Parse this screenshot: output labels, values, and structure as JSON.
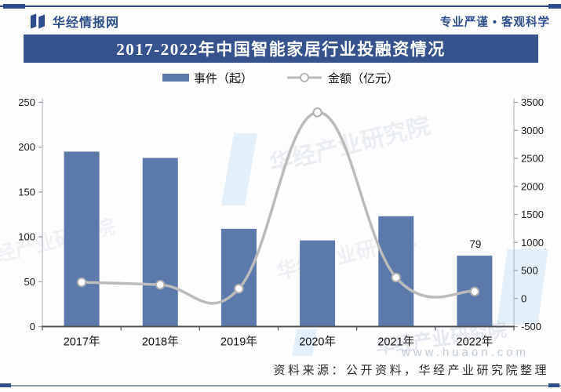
{
  "header": {
    "brand": "华经情报网",
    "slogan": "专业严谨 • 客观科学",
    "title": "2017-2022年中国智能家居行业投融资情况"
  },
  "legend": {
    "bar_label": "事件（起）",
    "line_label": "金额（亿元）"
  },
  "chart_data": {
    "type": "combo",
    "categories": [
      "2017年",
      "2018年",
      "2019年",
      "2020年",
      "2021年",
      "2022年"
    ],
    "series": [
      {
        "name": "事件（起）",
        "type": "bar",
        "axis": "left",
        "color": "#5b79ab",
        "values": [
          195,
          188,
          109,
          96,
          123,
          79
        ]
      },
      {
        "name": "金额（亿元）",
        "type": "line",
        "axis": "right",
        "color": "#bbbbbb",
        "values": [
          290,
          245,
          175,
          3320,
          375,
          125
        ]
      }
    ],
    "left_axis": {
      "min": 0,
      "max": 250,
      "step": 50
    },
    "right_axis": {
      "min": -500,
      "max": 3500,
      "step": 500
    },
    "annotations": [
      {
        "category": "2022年",
        "series": "事件（起）",
        "text": "79"
      }
    ],
    "legend_position": "top",
    "grid": false
  },
  "watermarks": {
    "name": "华经产业研究院",
    "site": "www.huaon.com"
  },
  "footer": {
    "source": "资料来源：公开资料，华经产业研究院整理"
  },
  "colors": {
    "brand": "#2e4d8c",
    "title_bg": "#36538e",
    "bar": "#5b79ab",
    "line": "#bbbbbb",
    "watermark_blue": "#b8d9f2"
  }
}
